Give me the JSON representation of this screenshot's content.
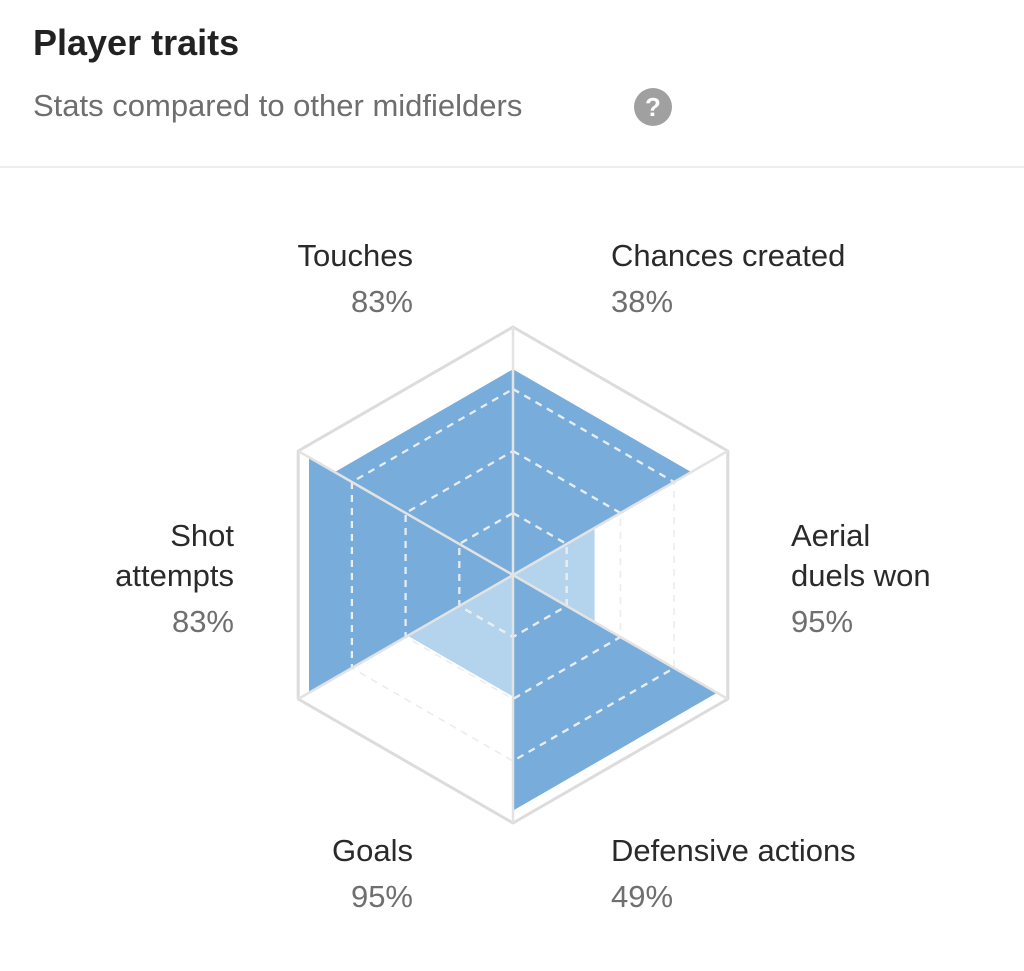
{
  "header": {
    "title": "Player traits",
    "subtitle": "Stats compared to other midfielders",
    "help_glyph": "?",
    "help_icon": "question-circle-icon"
  },
  "colors": {
    "fill_strong": "#77acdb",
    "fill_light": "#b4d3ec",
    "grid": "#dcdcdc",
    "help_bg": "#a0a0a0"
  },
  "chart_data": {
    "type": "radar",
    "rendering": "hexagon sectors",
    "max": 100,
    "unit": "%",
    "grid_levels": [
      25,
      50,
      75
    ],
    "categories": [
      {
        "label": "Touches",
        "lines": [
          "Touches"
        ],
        "value": 83,
        "value_label": "83%"
      },
      {
        "label": "Chances created",
        "lines": [
          "Chances created"
        ],
        "value": 38,
        "value_label": "38%"
      },
      {
        "label": "Aerial duels won",
        "lines": [
          "Aerial",
          "duels won"
        ],
        "value": 95,
        "value_label": "95%"
      },
      {
        "label": "Defensive actions",
        "lines": [
          "Defensive actions"
        ],
        "value": 49,
        "value_label": "49%"
      },
      {
        "label": "Goals",
        "lines": [
          "Goals"
        ],
        "value": 95,
        "value_label": "95%"
      },
      {
        "label": "Shot attempts",
        "lines": [
          "Shot",
          "attempts"
        ],
        "value": 83,
        "value_label": "83%"
      }
    ]
  }
}
